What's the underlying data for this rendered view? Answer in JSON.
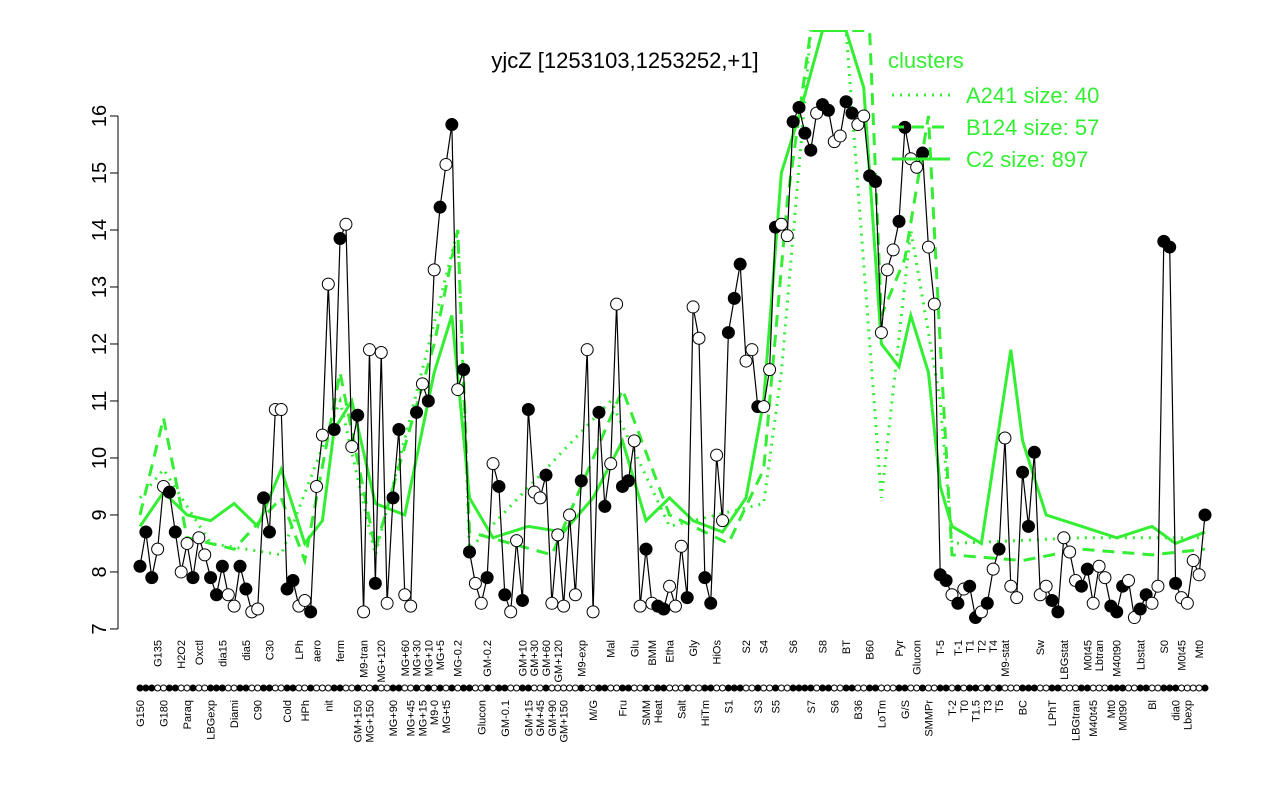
{
  "chart_data": {
    "type": "line",
    "title": "yjcZ [1253103,1253252,+1]",
    "legend_title": "clusters",
    "legend": "topright",
    "ylim": [
      6.85,
      17.5
    ],
    "yticks": [
      7,
      8,
      9,
      10,
      11,
      12,
      13,
      14,
      15,
      16
    ],
    "categories": [
      "G150",
      null,
      null,
      "G135",
      "G180",
      null,
      null,
      "H2O2",
      "Paraq",
      null,
      "Oxctl",
      null,
      "LBGexp",
      null,
      "dia15",
      null,
      "Diami",
      null,
      "dia5",
      null,
      "C90",
      null,
      "C30",
      null,
      null,
      "Cold",
      null,
      "LPh",
      "HPh",
      null,
      "aero",
      null,
      "nit",
      null,
      "ferm",
      null,
      null,
      "GM+150",
      "M9-tran",
      "MG+150",
      null,
      "MG+120",
      null,
      "MG+90",
      null,
      "MG+60",
      "MG+45",
      "MG+30",
      "MG+15",
      "MG+10",
      "M9-0",
      "MG+5",
      "MG+t5",
      null,
      "MG-0.2",
      null,
      null,
      null,
      "Glucon",
      "GM-0.2",
      null,
      null,
      "GM-0.1",
      null,
      null,
      "GM+10",
      "GM+15",
      "GM+30",
      "GM+45",
      "GM+60",
      "GM+90",
      "GM+120",
      "GM+150",
      null,
      null,
      "M9-exp",
      null,
      "M/G",
      null,
      null,
      "Mal",
      null,
      "Fru",
      null,
      "Glu",
      null,
      "SMM",
      "BMM",
      "Heat",
      null,
      "Etha",
      null,
      "Salt",
      null,
      "Gly",
      null,
      "HiTm",
      null,
      "HiOs",
      null,
      "S1",
      null,
      null,
      "S2",
      null,
      "S3",
      "S4",
      null,
      "S5",
      null,
      null,
      "S6",
      null,
      null,
      "S7",
      null,
      "S8",
      null,
      "S6",
      null,
      "BT",
      null,
      "B36",
      null,
      "B60",
      null,
      "LoTm",
      null,
      null,
      "Pyr",
      "G/S",
      null,
      "Glucon",
      null,
      "SMMPr",
      null,
      "T-5",
      null,
      "T-2",
      "T-1",
      "T0",
      "T1",
      "T1.5",
      "T2",
      "T3",
      "T4",
      "T5",
      "M9-stat",
      null,
      null,
      "BC",
      null,
      null,
      "Sw",
      null,
      "LPhT",
      null,
      "LBGstat",
      null,
      "LBGtran",
      null,
      "M0t45",
      "M40t45",
      "Lbtran",
      null,
      "Mt0",
      "M40t90",
      "M0t90",
      null,
      null,
      "Lbstat",
      null,
      "Bl",
      null,
      "S0",
      null,
      "dia0",
      "M0t45",
      "Lbexp",
      null,
      "Mt0",
      null
    ],
    "values": [
      8.1,
      8.7,
      7.9,
      8.4,
      9.5,
      9.4,
      8.7,
      8.0,
      8.5,
      7.9,
      8.6,
      8.3,
      7.9,
      7.6,
      8.1,
      7.6,
      7.4,
      8.1,
      7.7,
      7.3,
      7.35,
      9.3,
      8.7,
      10.85,
      10.85,
      7.7,
      7.85,
      7.4,
      7.5,
      7.3,
      9.5,
      10.4,
      13.05,
      10.5,
      13.85,
      14.1,
      10.2,
      10.75,
      7.3,
      11.9,
      7.8,
      11.85,
      7.45,
      9.3,
      10.5,
      7.6,
      7.4,
      10.8,
      11.3,
      11.0,
      13.3,
      14.4,
      15.15,
      15.85,
      11.2,
      11.55,
      8.35,
      7.8,
      7.45,
      7.9,
      9.9,
      9.5,
      7.6,
      7.3,
      8.55,
      7.5,
      10.85,
      9.4,
      9.3,
      9.7,
      7.45,
      8.65,
      7.4,
      9.0,
      7.6,
      9.6,
      11.9,
      7.3,
      10.8,
      9.15,
      9.9,
      12.7,
      9.5,
      9.6,
      10.3,
      7.4,
      8.4,
      7.45,
      7.4,
      7.35,
      7.75,
      7.4,
      8.45,
      7.55,
      12.65,
      12.1,
      7.9,
      7.45,
      10.05,
      8.9,
      12.2,
      12.8,
      13.4,
      11.7,
      11.9,
      10.9,
      10.9,
      11.55,
      14.05,
      14.1,
      13.9,
      15.9,
      16.15,
      15.7,
      15.4,
      16.05,
      16.2,
      16.1,
      15.55,
      15.65,
      16.25,
      16.05,
      15.85,
      16.0,
      14.95,
      14.85,
      12.2,
      13.3,
      13.65,
      14.15,
      15.8,
      15.25,
      15.1,
      15.35,
      13.7,
      12.7,
      7.95,
      7.85,
      7.6,
      7.45,
      7.7,
      7.75,
      7.2,
      7.3,
      7.45,
      8.05,
      8.4,
      10.35,
      7.75,
      7.55,
      9.75,
      8.8,
      10.1,
      7.6,
      7.75,
      7.5,
      7.3,
      8.6,
      8.35,
      7.85,
      7.75,
      8.05,
      7.45,
      8.1,
      7.9,
      7.4,
      7.3,
      7.75,
      7.85,
      7.2,
      7.35,
      7.6,
      7.45,
      7.75,
      13.8,
      13.7,
      7.8,
      7.55,
      7.45,
      8.2,
      7.95,
      9.0
    ],
    "point_fill": [
      "#000",
      "#000",
      "#000",
      "#fff",
      "#fff",
      "#000",
      "#000",
      "#fff",
      "#fff",
      "#000",
      "#fff",
      "#fff",
      "#000",
      "#000",
      "#000",
      "#fff",
      "#fff",
      "#000",
      "#000",
      "#fff",
      "#fff",
      "#000",
      "#000",
      "#fff",
      "#fff",
      "#000",
      "#000",
      "#fff",
      "#fff",
      "#000",
      "#fff",
      "#fff",
      "#fff",
      "#000",
      "#000",
      "#fff",
      "#fff",
      "#000",
      "#fff",
      "#fff",
      "#000",
      "#fff",
      "#fff",
      "#000",
      "#000",
      "#fff",
      "#fff",
      "#000",
      "#fff",
      "#000",
      "#fff",
      "#000",
      "#fff",
      "#000",
      "#fff",
      "#000",
      "#000",
      "#fff",
      "#fff",
      "#000",
      "#fff",
      "#000",
      "#000",
      "#fff",
      "#fff",
      "#000",
      "#000",
      "#fff",
      "#fff",
      "#000",
      "#fff",
      "#fff",
      "#fff",
      "#fff",
      "#fff",
      "#000",
      "#fff",
      "#fff",
      "#000",
      "#000",
      "#fff",
      "#fff",
      "#000",
      "#000",
      "#fff",
      "#fff",
      "#000",
      "#fff",
      "#000",
      "#000",
      "#fff",
      "#fff",
      "#fff",
      "#000",
      "#fff",
      "#fff",
      "#000",
      "#000",
      "#fff",
      "#fff",
      "#000",
      "#000",
      "#000",
      "#fff",
      "#fff",
      "#000",
      "#fff",
      "#fff",
      "#000",
      "#fff",
      "#fff",
      "#000",
      "#000",
      "#000",
      "#000",
      "#fff",
      "#000",
      "#000",
      "#fff",
      "#fff",
      "#000",
      "#000",
      "#fff",
      "#fff",
      "#000",
      "#000",
      "#fff",
      "#fff",
      "#fff",
      "#000",
      "#000",
      "#fff",
      "#fff",
      "#000",
      "#fff",
      "#fff",
      "#000",
      "#000",
      "#fff",
      "#000",
      "#fff",
      "#000",
      "#000",
      "#fff",
      "#000",
      "#fff",
      "#000",
      "#fff",
      "#fff",
      "#fff",
      "#000",
      "#000",
      "#000",
      "#fff",
      "#fff",
      "#000",
      "#000",
      "#fff",
      "#fff",
      "#fff",
      "#000",
      "#000",
      "#fff",
      "#fff",
      "#fff",
      "#000",
      "#000",
      "#000",
      "#fff",
      "#fff",
      "#000",
      "#000",
      "#fff",
      "#fff",
      "#000",
      "#000",
      "#000",
      "#fff",
      "#fff",
      "#fff",
      "#fff",
      "#000"
    ],
    "series": [
      {
        "name": "A241 size: 40",
        "color": "#33ee33",
        "linestyle": "dotted",
        "x": [
          0,
          4,
          12,
          24,
          34,
          40,
          54,
          56,
          80,
          90,
          106,
          109,
          114,
          120,
          126,
          131,
          136,
          138,
          160,
          181
        ],
        "values": [
          9.3,
          9.8,
          8.5,
          8.3,
          11.0,
          8.3,
          14.0,
          8.4,
          11.0,
          8.8,
          9.2,
          11.5,
          17.5,
          17.5,
          9.3,
          14.0,
          11.0,
          8.5,
          8.6,
          8.6
        ]
      },
      {
        "name": "B124 size: 57",
        "color": "#33ee33",
        "linestyle": "dashed",
        "x": [
          0,
          4,
          8,
          16,
          24,
          28,
          34,
          40,
          50,
          54,
          56,
          70,
          82,
          90,
          100,
          106,
          110,
          114,
          120,
          124,
          126,
          130,
          134,
          136,
          138,
          150,
          160,
          172,
          181
        ],
        "values": [
          9.0,
          10.7,
          8.6,
          8.4,
          9.3,
          8.2,
          11.5,
          8.4,
          12.0,
          14.0,
          8.7,
          8.3,
          11.2,
          9.0,
          8.5,
          9.8,
          14.5,
          17.5,
          17.5,
          17.5,
          12.5,
          13.5,
          16.0,
          12.0,
          8.3,
          8.2,
          8.4,
          8.3,
          8.4
        ]
      },
      {
        "name": "C2 size: 897",
        "color": "#33ee33",
        "linestyle": "solid",
        "x": [
          0,
          4,
          8,
          12,
          16,
          20,
          24,
          28,
          31,
          33,
          36,
          40,
          45,
          50,
          53,
          56,
          60,
          66,
          72,
          77,
          82,
          86,
          90,
          94,
          99,
          103,
          106,
          109,
          112,
          116,
          120,
          123,
          126,
          129,
          131,
          134,
          136,
          138,
          143,
          148,
          150,
          154,
          160,
          166,
          172,
          176,
          181
        ],
        "values": [
          8.8,
          9.4,
          9.0,
          8.9,
          9.2,
          8.8,
          9.8,
          8.5,
          8.9,
          10.5,
          11.0,
          9.2,
          9.0,
          11.5,
          12.5,
          9.3,
          8.6,
          8.8,
          8.7,
          9.3,
          10.3,
          8.9,
          9.3,
          8.9,
          8.7,
          9.3,
          11.0,
          15.0,
          16.0,
          17.5,
          17.5,
          16.5,
          12.0,
          11.6,
          12.5,
          11.5,
          9.5,
          8.8,
          8.5,
          11.9,
          10.3,
          9.0,
          8.8,
          8.6,
          8.8,
          8.5,
          8.7
        ]
      }
    ]
  }
}
